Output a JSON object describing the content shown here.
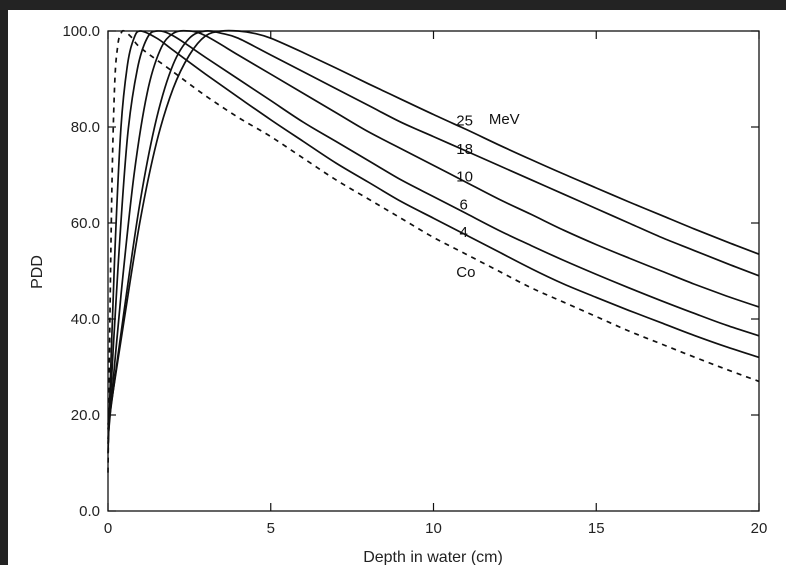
{
  "chart_data": {
    "type": "line",
    "title": "",
    "xlabel": "Depth in water (cm)",
    "ylabel": "PDD",
    "xlim": [
      0,
      20
    ],
    "ylim": [
      0,
      100
    ],
    "xticks": [
      0,
      5,
      10,
      15,
      20
    ],
    "xtick_labels": [
      "0",
      "5",
      "10",
      "15",
      "20"
    ],
    "yticks": [
      0,
      20,
      40,
      60,
      80,
      100
    ],
    "ytick_labels": [
      "0.0",
      "20.0",
      "40.0",
      "60.0",
      "80.0",
      "100.0"
    ],
    "grid": false,
    "series": [
      {
        "name": "Co",
        "style": "dashed",
        "color": "#111111",
        "x": [
          0,
          0.1,
          0.2,
          0.3,
          0.4,
          0.5,
          0.75,
          1,
          2,
          3,
          4,
          5,
          6,
          7,
          8,
          9,
          10,
          11,
          12,
          13,
          14,
          15,
          16,
          17,
          18,
          19,
          20
        ],
        "y": [
          8,
          60,
          88,
          97,
          99.5,
          100,
          98.5,
          96.5,
          91.5,
          86.5,
          82,
          78,
          73.5,
          69,
          65,
          61,
          57,
          53.5,
          50,
          46.5,
          43.5,
          40.5,
          37.5,
          34.8,
          32.1,
          29.5,
          27
        ]
      },
      {
        "name": "4",
        "style": "solid",
        "color": "#111111",
        "x": [
          0,
          0.2,
          0.4,
          0.6,
          0.8,
          1,
          1.5,
          2,
          3,
          4,
          5,
          6,
          7,
          8,
          9,
          10,
          11,
          12,
          13,
          14,
          15,
          16,
          17,
          18,
          19,
          20
        ],
        "y": [
          12,
          52,
          80,
          93,
          98.5,
          100,
          98.5,
          96,
          91,
          86.2,
          81.5,
          77,
          72.5,
          68.5,
          64.5,
          61,
          57.5,
          54,
          50.5,
          47.3,
          44.5,
          41.8,
          39.2,
          36.6,
          34.2,
          32
        ]
      },
      {
        "name": "6",
        "style": "solid",
        "color": "#111111",
        "x": [
          0,
          0.3,
          0.6,
          0.9,
          1.2,
          1.5,
          2,
          3,
          4,
          5,
          6,
          7,
          8,
          9,
          10,
          11,
          12,
          13,
          14,
          15,
          16,
          17,
          18,
          19,
          20
        ],
        "y": [
          14,
          50,
          78,
          92,
          98.5,
          100,
          99,
          94.5,
          90,
          85.5,
          81,
          77,
          73,
          69,
          65.5,
          62,
          58.5,
          55.3,
          52.2,
          49.3,
          46.5,
          43.8,
          41.2,
          38.7,
          36.5
        ]
      },
      {
        "name": "10",
        "style": "solid",
        "color": "#111111",
        "x": [
          0,
          0.4,
          0.8,
          1.2,
          1.6,
          2,
          2.5,
          3,
          4,
          5,
          6,
          7,
          8,
          9,
          10,
          11,
          12,
          13,
          14,
          15,
          16,
          17,
          18,
          19,
          20
        ],
        "y": [
          15,
          45,
          70,
          87,
          96,
          99.5,
          100,
          99,
          95,
          91,
          87,
          83,
          79,
          75.5,
          72,
          68.5,
          65,
          61.8,
          58.5,
          55.5,
          52.7,
          50,
          47.3,
          44.8,
          42.5
        ]
      },
      {
        "name": "18",
        "style": "solid",
        "color": "#111111",
        "x": [
          0,
          0.5,
          1,
          1.5,
          2,
          2.5,
          3,
          3.5,
          4,
          5,
          6,
          7,
          8,
          9,
          10,
          11,
          12,
          13,
          14,
          15,
          16,
          17,
          18,
          19,
          20
        ],
        "y": [
          17,
          42,
          65,
          82,
          93,
          98.5,
          100,
          99.5,
          98.5,
          95,
          91.5,
          88,
          84.5,
          81,
          78,
          75,
          72,
          69,
          66,
          63,
          60,
          57,
          54.3,
          51.6,
          49
        ]
      },
      {
        "name": "25",
        "style": "solid",
        "color": "#111111",
        "x": [
          0,
          0.5,
          1,
          1.5,
          2,
          2.5,
          3,
          3.5,
          4,
          4.5,
          5,
          6,
          7,
          8,
          9,
          10,
          11,
          12,
          13,
          14,
          15,
          16,
          17,
          18,
          19,
          20
        ],
        "y": [
          18,
          40,
          61,
          77,
          88,
          95,
          99,
          100,
          100,
          99.5,
          98.5,
          95.5,
          92.3,
          89,
          85.8,
          82.6,
          79.5,
          76.3,
          73.2,
          70.2,
          67.3,
          64.4,
          61.6,
          58.8,
          56.1,
          53.5
        ]
      }
    ],
    "annotations": [
      {
        "text": "25",
        "x": 10.7,
        "y": 80.3
      },
      {
        "text": "MeV",
        "x": 11.7,
        "y": 80.6
      },
      {
        "text": "18",
        "x": 10.7,
        "y": 74.4
      },
      {
        "text": "10",
        "x": 10.7,
        "y": 68.6
      },
      {
        "text": "6",
        "x": 10.8,
        "y": 62.8
      },
      {
        "text": "4",
        "x": 10.8,
        "y": 57.1
      },
      {
        "text": "Co",
        "x": 10.7,
        "y": 48.8
      }
    ]
  }
}
